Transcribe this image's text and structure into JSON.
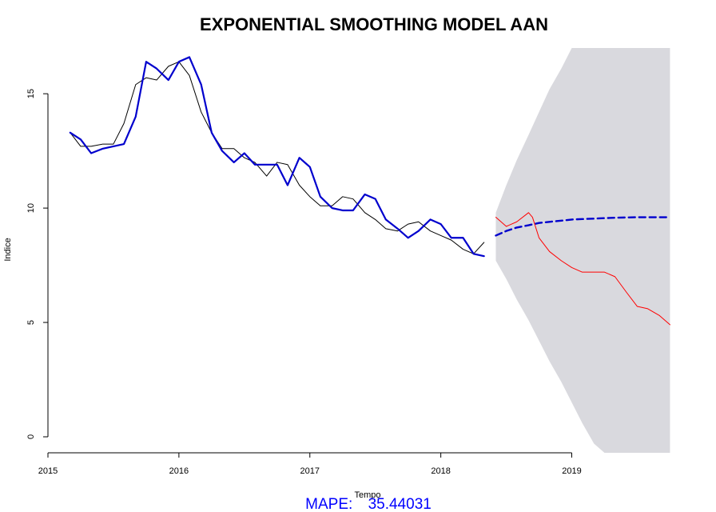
{
  "chart_data": {
    "type": "line",
    "title": "EXPONENTIAL SMOOTHING MODEL AAN",
    "xlabel": "Tempo",
    "ylabel": "Indice",
    "xlim": [
      2015.0,
      2019.9
    ],
    "ylim": [
      -0.7,
      17.0
    ],
    "x_ticks": [
      2015,
      2016,
      2017,
      2018,
      2019
    ],
    "x_tick_labels": [
      "2015",
      "2016",
      "2017",
      "2018",
      "2019"
    ],
    "y_ticks": [
      0,
      5,
      10,
      15
    ],
    "y_tick_labels": [
      "0",
      "5",
      "10",
      "15"
    ],
    "grid": false,
    "colors": {
      "observed": "#000000",
      "fitted": "#0000cd",
      "forecast": "#0000cd",
      "actual_test": "#ff0000",
      "band": "#d9d9de",
      "annotation": "#0000ff"
    },
    "band": {
      "x": [
        2018.42,
        2018.5,
        2018.58,
        2018.67,
        2018.75,
        2018.83,
        2018.92,
        2019.0,
        2019.08,
        2019.17,
        2019.25,
        2019.29,
        2019.75
      ],
      "upper": [
        9.8,
        11.0,
        12.1,
        13.2,
        14.2,
        15.2,
        16.1,
        17.0,
        17.0,
        17.0,
        17.0,
        17.0,
        17.0
      ],
      "lower": [
        7.7,
        6.9,
        6.0,
        5.1,
        4.2,
        3.3,
        2.4,
        1.5,
        0.6,
        -0.3,
        -0.7,
        -0.7,
        -0.7
      ]
    },
    "series": [
      {
        "role": "observed",
        "x": [
          2015.17,
          2015.25,
          2015.33,
          2015.42,
          2015.5,
          2015.58,
          2015.67,
          2015.75,
          2015.83,
          2015.92,
          2016.0,
          2016.08,
          2016.17,
          2016.25,
          2016.33,
          2016.42,
          2016.5,
          2016.58,
          2016.67,
          2016.75,
          2016.83,
          2016.92,
          2017.0,
          2017.08,
          2017.17,
          2017.25,
          2017.33,
          2017.42,
          2017.5,
          2017.58,
          2017.67,
          2017.75,
          2017.83,
          2017.92,
          2018.0,
          2018.08,
          2018.17,
          2018.25,
          2018.33
        ],
        "y": [
          13.3,
          12.7,
          12.7,
          12.8,
          12.8,
          13.7,
          15.4,
          15.7,
          15.6,
          16.2,
          16.4,
          15.8,
          14.2,
          13.3,
          12.6,
          12.6,
          12.2,
          12.0,
          11.4,
          12.0,
          11.9,
          11.0,
          10.5,
          10.1,
          10.1,
          10.5,
          10.4,
          9.8,
          9.5,
          9.1,
          9.0,
          9.3,
          9.4,
          9.0,
          8.8,
          8.6,
          8.2,
          8.0,
          8.5
        ]
      },
      {
        "role": "fitted",
        "x": [
          2015.17,
          2015.25,
          2015.33,
          2015.42,
          2015.5,
          2015.58,
          2015.67,
          2015.75,
          2015.83,
          2015.92,
          2016.0,
          2016.08,
          2016.17,
          2016.25,
          2016.33,
          2016.42,
          2016.5,
          2016.58,
          2016.67,
          2016.75,
          2016.83,
          2016.92,
          2017.0,
          2017.08,
          2017.17,
          2017.25,
          2017.33,
          2017.42,
          2017.5,
          2017.58,
          2017.67,
          2017.75,
          2017.83,
          2017.92,
          2018.0,
          2018.08,
          2018.17,
          2018.25,
          2018.33
        ],
        "y": [
          13.3,
          13.0,
          12.4,
          12.6,
          12.7,
          12.8,
          14.0,
          16.4,
          16.1,
          15.6,
          16.4,
          16.6,
          15.4,
          13.3,
          12.5,
          12.0,
          12.4,
          11.9,
          11.9,
          11.9,
          11.0,
          12.2,
          11.8,
          10.5,
          10.0,
          9.9,
          9.9,
          10.6,
          10.4,
          9.5,
          9.1,
          8.7,
          9.0,
          9.5,
          9.3,
          8.7,
          8.7,
          8.0,
          7.9
        ]
      },
      {
        "role": "forecast",
        "x": [
          2018.42,
          2018.5,
          2018.58,
          2018.67,
          2018.75,
          2018.83,
          2018.92,
          2019.0,
          2019.08,
          2019.17,
          2019.25,
          2019.33,
          2019.42,
          2019.5,
          2019.58,
          2019.67,
          2019.75
        ],
        "y": [
          8.8,
          9.0,
          9.15,
          9.25,
          9.35,
          9.4,
          9.45,
          9.5,
          9.52,
          9.54,
          9.56,
          9.58,
          9.59,
          9.6,
          9.6,
          9.6,
          9.6
        ]
      },
      {
        "role": "actual_test",
        "x": [
          2018.42,
          2018.5,
          2018.58,
          2018.67,
          2018.7,
          2018.75,
          2018.83,
          2018.92,
          2019.0,
          2019.08,
          2019.17,
          2019.25,
          2019.33,
          2019.42,
          2019.5,
          2019.58,
          2019.67,
          2019.75
        ],
        "y": [
          9.6,
          9.2,
          9.4,
          9.8,
          9.6,
          8.7,
          8.1,
          7.7,
          7.4,
          7.2,
          7.2,
          7.2,
          7.0,
          6.3,
          5.7,
          5.6,
          5.3,
          4.9
        ]
      }
    ],
    "annotation": {
      "label": "MAPE:",
      "value": "35.44031"
    }
  }
}
